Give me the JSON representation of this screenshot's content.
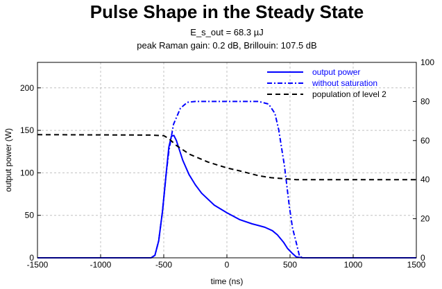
{
  "chart_data": {
    "type": "line",
    "title": "Pulse Shape in the Steady State",
    "subtitle_lines": [
      "E_s_out = 68.3 µJ",
      "peak Raman gain: 0.2 dB, Brillouin: 107.5 dB"
    ],
    "xlabel": "time (ns)",
    "ylabel": "output power (W)",
    "xlim": [
      -1500,
      1500
    ],
    "ylim": [
      0,
      230
    ],
    "y2lim": [
      0,
      100
    ],
    "xticks": [
      -1500,
      -1000,
      -500,
      0,
      500,
      1000,
      1500
    ],
    "yticks": [
      0,
      50,
      100,
      150,
      200
    ],
    "y2ticks": [
      0,
      20,
      40,
      60,
      80,
      100
    ],
    "grid": true,
    "legend_position": "top-right",
    "series": [
      {
        "name": "output power",
        "axis": "left",
        "color": "#0000ff",
        "style": "solid",
        "x": [
          -1500,
          -600,
          -570,
          -540,
          -510,
          -480,
          -460,
          -440,
          -420,
          -400,
          -350,
          -300,
          -250,
          -200,
          -100,
          0,
          100,
          200,
          250,
          300,
          360,
          400,
          450,
          480,
          520,
          550,
          600,
          1500
        ],
        "y": [
          0,
          0,
          3,
          20,
          55,
          100,
          130,
          143,
          144,
          138,
          115,
          98,
          86,
          76,
          62,
          53,
          45,
          40,
          38,
          36,
          32,
          27,
          18,
          11,
          5,
          1,
          0,
          0
        ]
      },
      {
        "name": "without saturation",
        "axis": "left",
        "color": "#0000ff",
        "style": "dashdot",
        "x": [
          -1500,
          -600,
          -570,
          -540,
          -510,
          -480,
          -460,
          -423,
          -368,
          -313,
          -250,
          0,
          250,
          330,
          380,
          410,
          456,
          494,
          520,
          549,
          575,
          600,
          1500
        ],
        "y": [
          0,
          0,
          3,
          20,
          55,
          100,
          125,
          157,
          176,
          183,
          184,
          184,
          184,
          181,
          170,
          151,
          108,
          61,
          35,
          18,
          2,
          0,
          0
        ]
      },
      {
        "name": "population of level 2",
        "axis": "right",
        "color": "#000000",
        "style": "dashed",
        "x": [
          -1500,
          -600,
          -500,
          -460,
          -400,
          -296,
          -150,
          0,
          100,
          253,
          350,
          473,
          550,
          1500
        ],
        "y": [
          63,
          62.8,
          62.5,
          61,
          57.5,
          53,
          49,
          46,
          44.5,
          42,
          41,
          40.4,
          40,
          40
        ]
      }
    ]
  }
}
